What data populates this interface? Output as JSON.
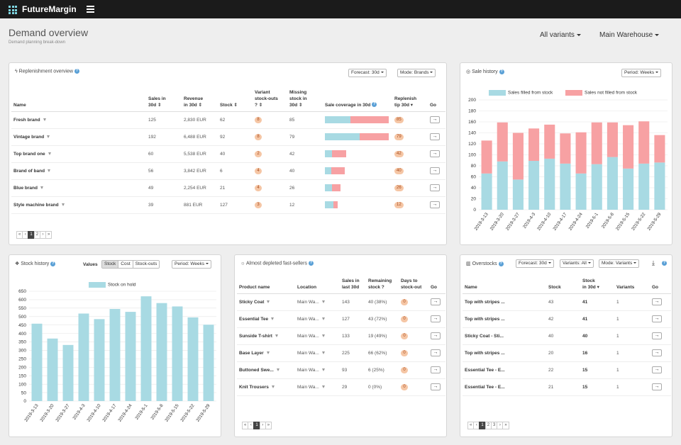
{
  "app": {
    "name": "FutureMargin"
  },
  "header": {
    "title": "Demand overview",
    "subtitle": "Demand planning break-down",
    "variants": "All variants",
    "warehouse": "Main Warehouse"
  },
  "replenishment": {
    "title": "Replenishment overview",
    "forecast": "Forecast: 30d",
    "mode": "Mode: Brands",
    "columns": {
      "name": "Name",
      "sales_1": "Sales in",
      "sales_2": "30d ⇕",
      "revenue_1": "Revenue",
      "revenue_2": "in 30d ⇕",
      "stock": "Stock ⇕",
      "stockouts_1": "Variant",
      "stockouts_2": "stock-outs",
      "stockouts_3": "? ⇕",
      "missing_1": "Missing",
      "missing_2": "stock in",
      "missing_3": "30d ⇕",
      "coverage": "Sale coverage in 30d",
      "replenish_1": "Replenish",
      "replenish_2": "tip 30d ▾",
      "go": "Go"
    },
    "rows": [
      {
        "name": "Fresh brand",
        "sales": "125",
        "revenue": "2,830 EUR",
        "stock": "62",
        "stockouts": "8",
        "missing": "85",
        "tip": "85",
        "cov_filled": 0.4,
        "cov_missing": 0.6,
        "go": "→"
      },
      {
        "name": "Vintage brand",
        "sales": "192",
        "revenue": "6,488 EUR",
        "stock": "92",
        "stockouts": "8",
        "missing": "79",
        "tip": "79",
        "cov_filled": 0.54,
        "cov_missing": 0.46,
        "go": "→"
      },
      {
        "name": "Top brand one",
        "sales": "60",
        "revenue": "5,538 EUR",
        "stock": "40",
        "stockouts": "2",
        "missing": "42",
        "tip": "42",
        "cov_filled": 0.11,
        "cov_missing": 0.22,
        "go": "→"
      },
      {
        "name": "Brand of band",
        "sales": "56",
        "revenue": "3,842 EUR",
        "stock": "6",
        "stockouts": "4",
        "missing": "40",
        "tip": "40",
        "cov_filled": 0.1,
        "cov_missing": 0.21,
        "go": "→"
      },
      {
        "name": "Blue brand",
        "sales": "49",
        "revenue": "2,254 EUR",
        "stock": "21",
        "stockouts": "4",
        "missing": "26",
        "tip": "26",
        "cov_filled": 0.11,
        "cov_missing": 0.13,
        "go": "→"
      },
      {
        "name": "Style machine brand",
        "sales": "39",
        "revenue": "881 EUR",
        "stock": "127",
        "stockouts": "3",
        "missing": "12",
        "tip": "12",
        "cov_filled": 0.13,
        "cov_missing": 0.07,
        "go": "→"
      }
    ],
    "pager": [
      "«",
      "‹",
      "1",
      "2",
      "›",
      "»"
    ],
    "pager_active": "1"
  },
  "sale_history": {
    "title": "Sale history",
    "period": "Period: Weeks",
    "legend_filled": "Sales filled from stock",
    "legend_not": "Sales not filled from stock",
    "colors": {
      "filled": "#a8dae3",
      "not": "#f7a1a3"
    }
  },
  "stock_history": {
    "title": "Stock history",
    "values_label": "Values",
    "values_options": [
      "Stock",
      "Cost",
      "Stock-outs"
    ],
    "values_active": "Stock",
    "period": "Period: Weeks",
    "legend": "Stock on hold",
    "color": "#a8dae3"
  },
  "depleted": {
    "title": "Almost depleted fast-sellers",
    "columns": {
      "product": "Product name",
      "location": "Location",
      "sales_1": "Sales in",
      "sales_2": "last 30d",
      "remaining_1": "Remaining",
      "remaining_2": "stock ?",
      "days_1": "Days to",
      "days_2": "stock-out",
      "go": "Go"
    },
    "rows": [
      {
        "product": "Sticky Coat",
        "location": "Main Wa...",
        "sales": "143",
        "remaining": "40 (38%)",
        "days": "0",
        "go": "→"
      },
      {
        "product": "Essential Tee",
        "location": "Main Wa...",
        "sales": "127",
        "remaining": "43 (72%)",
        "days": "0",
        "go": "→"
      },
      {
        "product": "Sunside T-shirt",
        "location": "Main Wa...",
        "sales": "133",
        "remaining": "19 (49%)",
        "days": "0",
        "go": "→"
      },
      {
        "product": "Base Layer",
        "location": "Main Wa...",
        "sales": "225",
        "remaining": "66 (62%)",
        "days": "0",
        "go": "→"
      },
      {
        "product": "Buttoned Swe...",
        "location": "Main Wa...",
        "sales": "93",
        "remaining": "6 (25%)",
        "days": "0",
        "go": "→"
      },
      {
        "product": "Knit Trousers",
        "location": "Main Wa...",
        "sales": "29",
        "remaining": "0 (0%)",
        "days": "0",
        "go": "→"
      }
    ],
    "pager": [
      "«",
      "‹",
      "1",
      "›",
      "»"
    ],
    "pager_active": "1"
  },
  "overstocks": {
    "title": "Overstocks",
    "forecast": "Forecast: 30d",
    "variants": "Variants: All",
    "mode": "Mode: Variants",
    "columns": {
      "name": "Name",
      "stock": "Stock",
      "stock30_1": "Stock",
      "stock30_2": "in 30d ▾",
      "variants": "Variants",
      "go": "Go"
    },
    "rows": [
      {
        "name": "Top with stripes ...",
        "stock": "43",
        "stock30": "41",
        "variants": "1",
        "go": "→"
      },
      {
        "name": "Top with stripes ...",
        "stock": "42",
        "stock30": "41",
        "variants": "1",
        "go": "→"
      },
      {
        "name": "Sticky Coat - Sti...",
        "stock": "40",
        "stock30": "40",
        "variants": "1",
        "go": "→"
      },
      {
        "name": "Top with stripes ...",
        "stock": "20",
        "stock30": "16",
        "variants": "1",
        "go": "→"
      },
      {
        "name": "Essential Tee - E...",
        "stock": "22",
        "stock30": "15",
        "variants": "1",
        "go": "→"
      },
      {
        "name": "Essential Tee - E...",
        "stock": "21",
        "stock30": "15",
        "variants": "1",
        "go": "→"
      }
    ],
    "pager": [
      "«",
      "‹",
      "1",
      "2",
      "3",
      "›",
      "»"
    ],
    "pager_active": "1"
  },
  "chart_data": [
    {
      "type": "bar",
      "stacked": true,
      "title": "Sale history",
      "categories": [
        "2019-3-13",
        "2019-3-20",
        "2019-3-27",
        "2019-4-3",
        "2019-4-10",
        "2019-4-17",
        "2019-4-24",
        "2019-5-1",
        "2019-5-8",
        "2019-5-15",
        "2019-5-22",
        "2019-5-29"
      ],
      "series": [
        {
          "name": "Sales filled from stock",
          "values": [
            66,
            88,
            55,
            89,
            93,
            84,
            66,
            83,
            96,
            75,
            84,
            86
          ]
        },
        {
          "name": "Sales not filled from stock",
          "values": [
            60,
            71,
            85,
            59,
            62,
            55,
            75,
            76,
            63,
            79,
            77,
            50
          ]
        }
      ],
      "ylim": [
        0,
        200
      ],
      "yticks": [
        0,
        20,
        40,
        60,
        80,
        100,
        120,
        140,
        160,
        180,
        200
      ],
      "legend": "top"
    },
    {
      "type": "bar",
      "title": "Stock history",
      "categories": [
        "2019-3-13",
        "2019-3-20",
        "2019-3-27",
        "2019-4-3",
        "2019-4-10",
        "2019-4-17",
        "2019-4-24",
        "2019-5-1",
        "2019-5-8",
        "2019-5-15",
        "2019-5-22",
        "2019-5-29"
      ],
      "series": [
        {
          "name": "Stock on hold",
          "values": [
            458,
            370,
            332,
            518,
            485,
            545,
            528,
            620,
            580,
            560,
            495,
            452
          ]
        }
      ],
      "ylim": [
        0,
        650
      ],
      "yticks": [
        0,
        50,
        100,
        150,
        200,
        250,
        300,
        350,
        400,
        450,
        500,
        550,
        600,
        650
      ],
      "legend": "top"
    }
  ]
}
